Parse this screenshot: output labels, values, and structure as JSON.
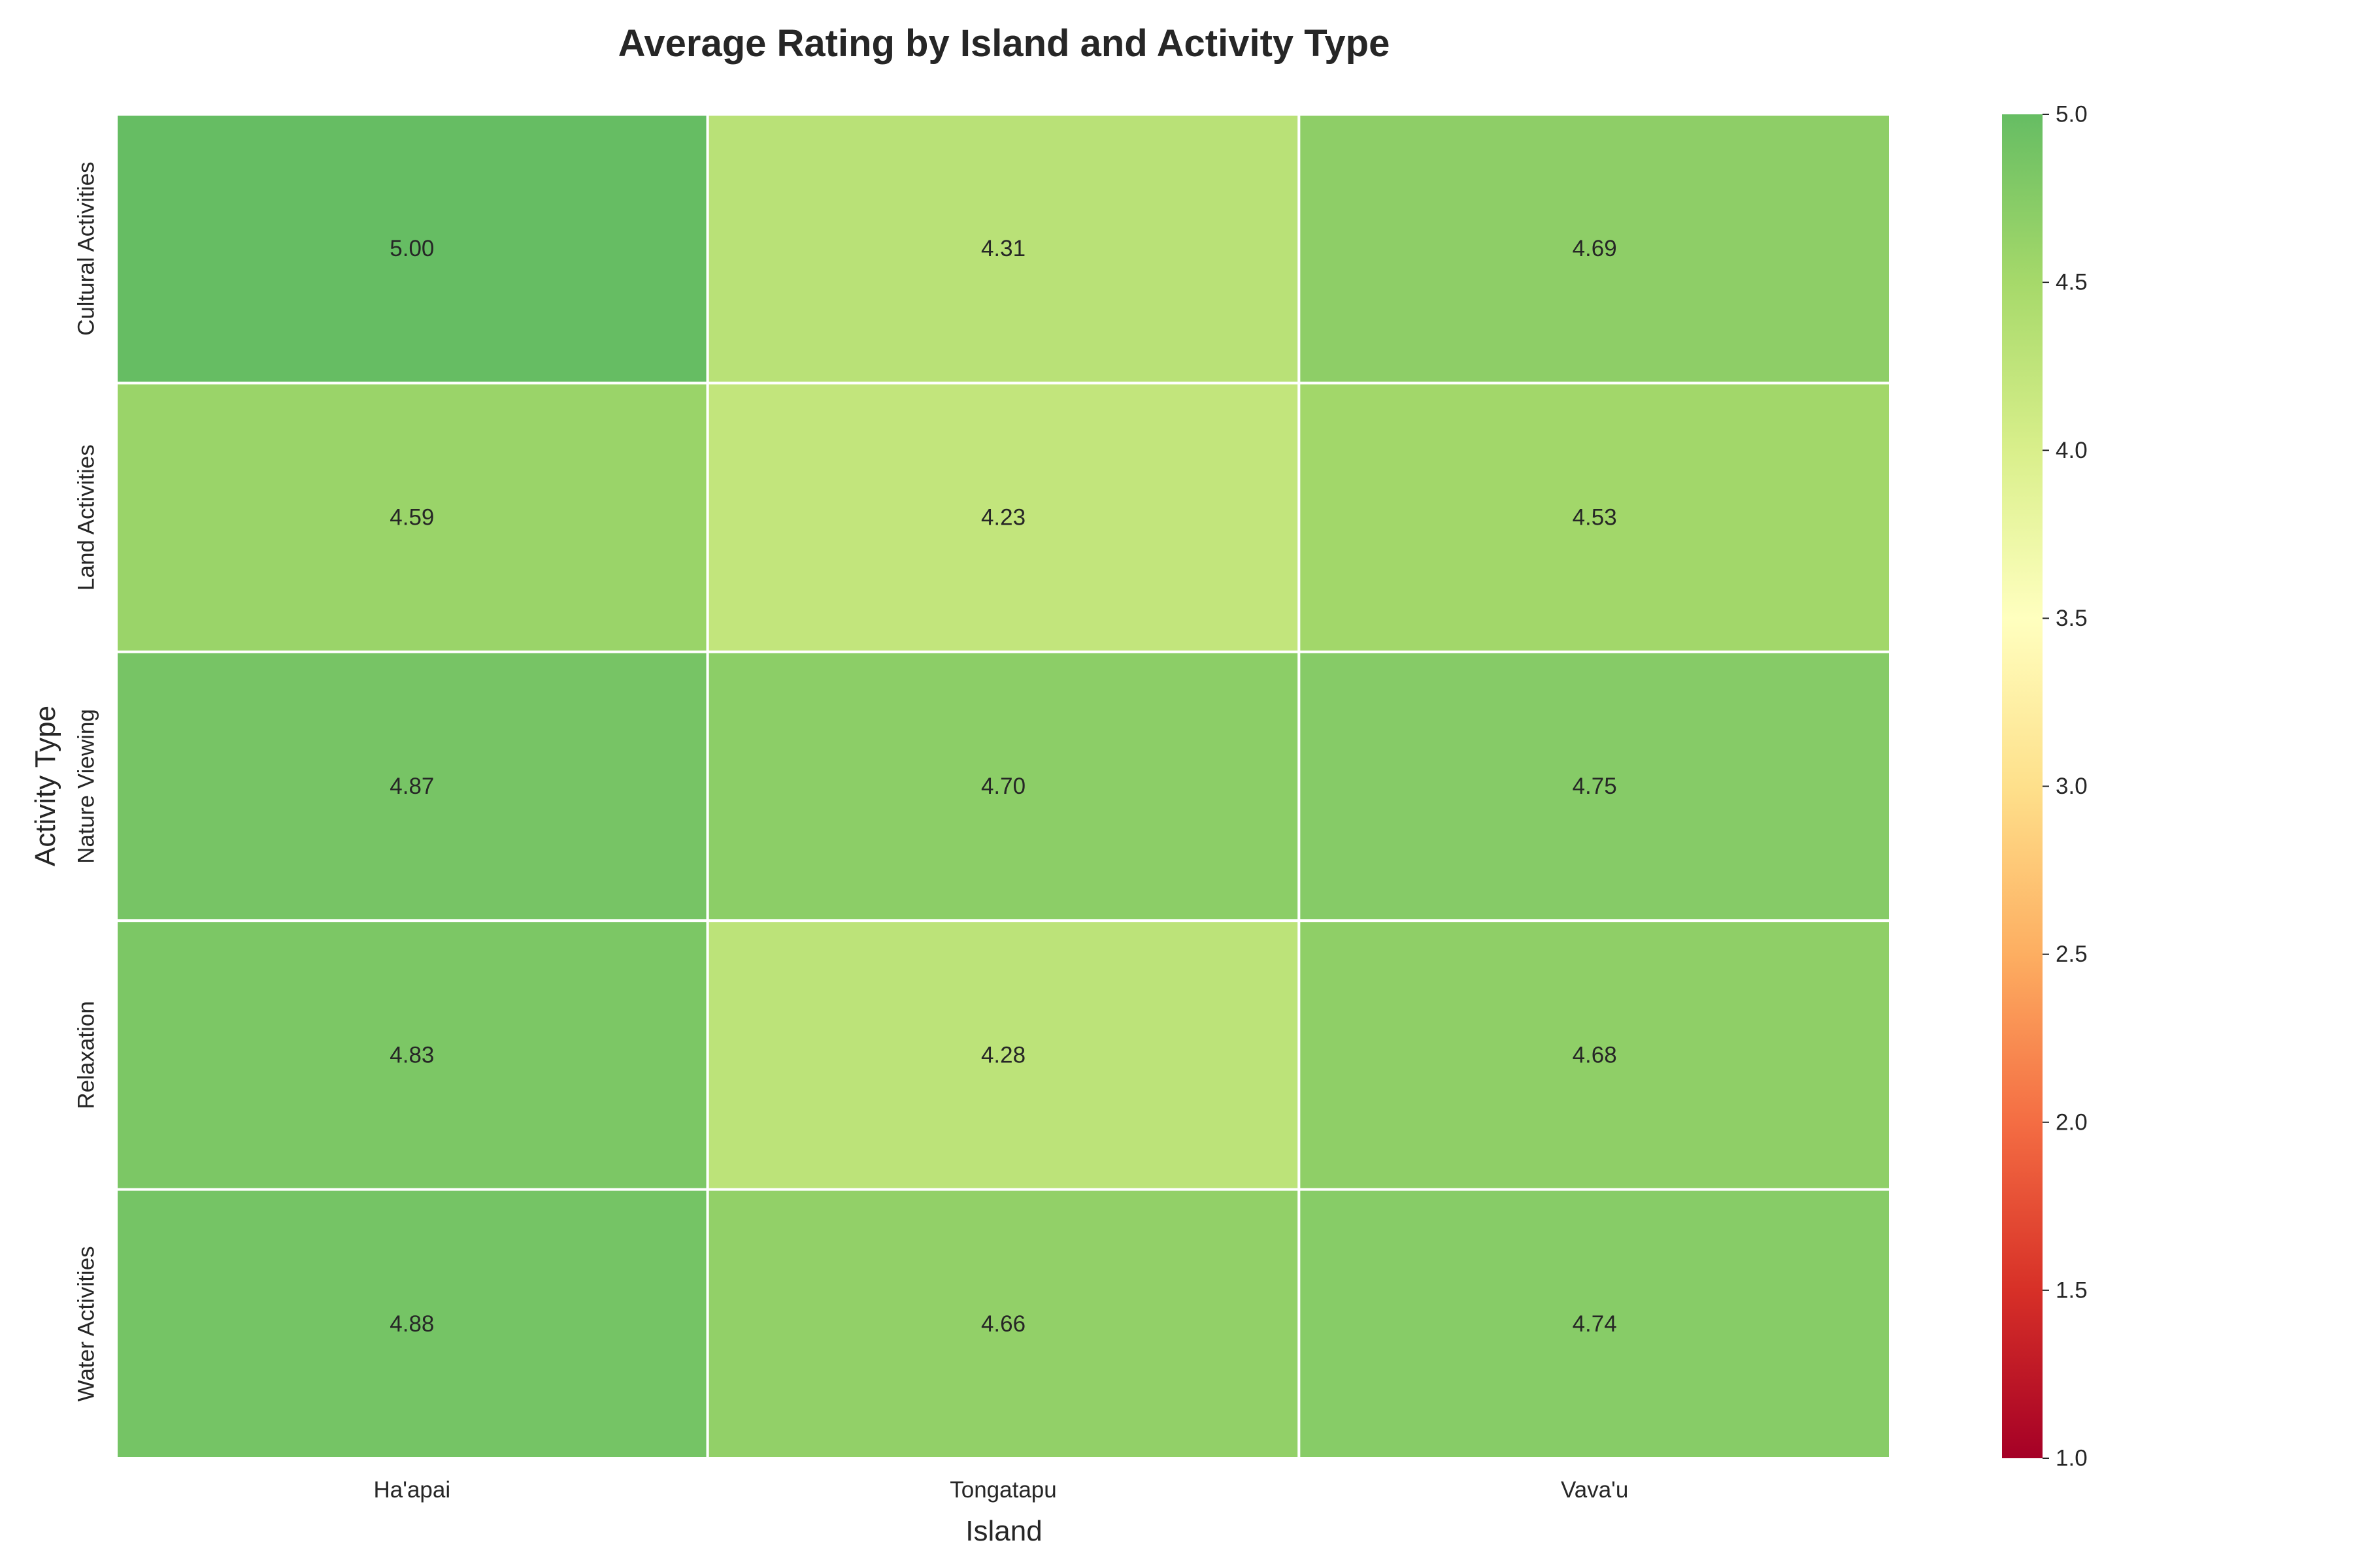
{
  "chart_data": {
    "type": "heatmap",
    "title": "Average Rating by Island and Activity Type",
    "xlabel": "Island",
    "ylabel": "Activity Type",
    "x_categories": [
      "Ha'apai",
      "Tongatapu",
      "Vava'u"
    ],
    "y_categories": [
      "Cultural Activities",
      "Land Activities",
      "Nature Viewing",
      "Relaxation",
      "Water Activities"
    ],
    "values": [
      [
        5.0,
        4.31,
        4.69
      ],
      [
        4.59,
        4.23,
        4.53
      ],
      [
        4.87,
        4.7,
        4.75
      ],
      [
        4.83,
        4.28,
        4.68
      ],
      [
        4.88,
        4.66,
        4.74
      ]
    ],
    "value_labels": [
      [
        "5.00",
        "4.31",
        "4.69"
      ],
      [
        "4.59",
        "4.23",
        "4.53"
      ],
      [
        "4.87",
        "4.70",
        "4.75"
      ],
      [
        "4.83",
        "4.28",
        "4.68"
      ],
      [
        "4.88",
        "4.66",
        "4.74"
      ]
    ],
    "colormap": "RdYlGn",
    "vmin": 1.0,
    "vmax": 5.0,
    "colorbar_ticks": [
      "1.0",
      "1.5",
      "2.0",
      "2.5",
      "3.0",
      "3.5",
      "4.0",
      "4.5",
      "5.0"
    ],
    "colormap_stops": [
      {
        "value": 0.0,
        "color": "#a50026"
      },
      {
        "value": 0.1,
        "color": "#d73027"
      },
      {
        "value": 0.2,
        "color": "#f46d43"
      },
      {
        "value": 0.3,
        "color": "#fdae61"
      },
      {
        "value": 0.4,
        "color": "#fee08b"
      },
      {
        "value": 0.5,
        "color": "#ffffbf"
      },
      {
        "value": 0.6,
        "color": "#d9ef8b"
      },
      {
        "value": 0.7,
        "color": "#a6d96a"
      },
      {
        "value": 0.8,
        "color": "#66bd63"
      }
    ],
    "cell_border_color": "#ffffff",
    "grid": false,
    "legend": "colorbar-right"
  }
}
